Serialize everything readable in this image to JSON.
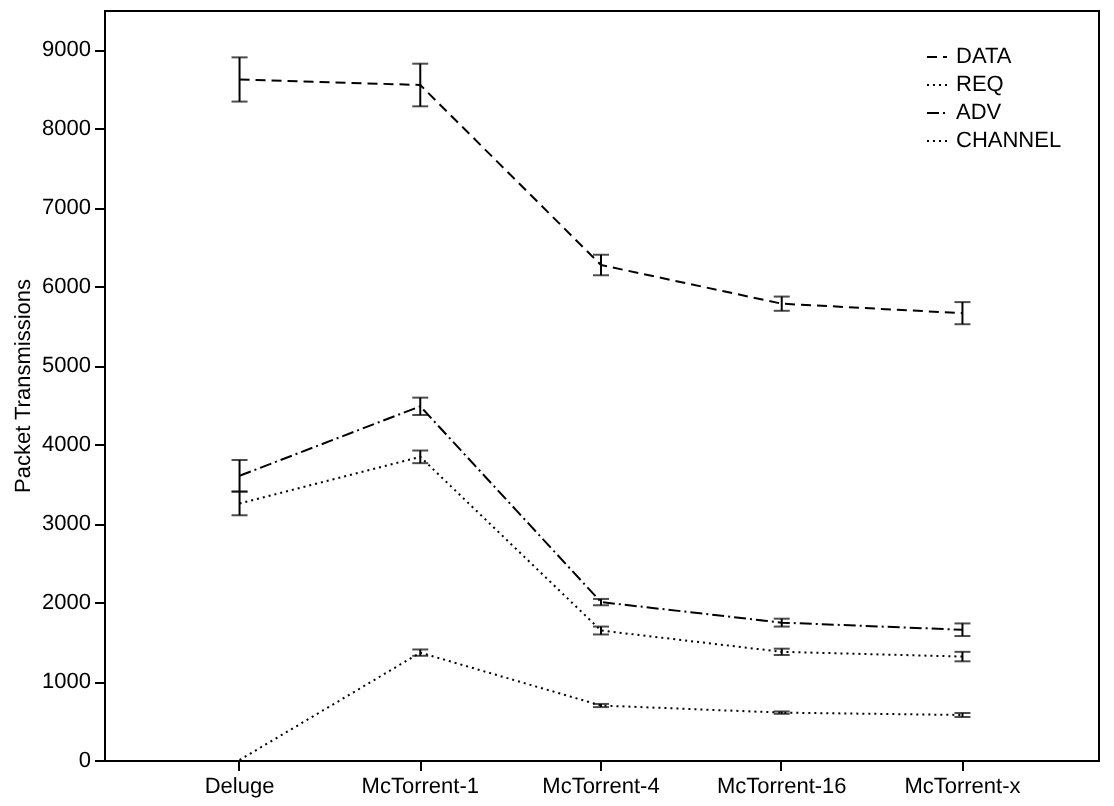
{
  "chart_data": {
    "type": "line",
    "ylabel": "Packet Transmissions",
    "categories": [
      "Deluge",
      "McTorrent-1",
      "McTorrent-4",
      "McTorrent-16",
      "McTorrent-x"
    ],
    "series": [
      {
        "name": "DATA",
        "color": "#000000",
        "line_style": "dashed",
        "values": [
          8620,
          8550,
          6270,
          5780,
          5660
        ],
        "errors": [
          280,
          270,
          130,
          90,
          140
        ]
      },
      {
        "name": "REQ",
        "color": "#000000",
        "line_style": "dotted",
        "values": [
          3250,
          3840,
          1640,
          1370,
          1310
        ],
        "errors": [
          150,
          80,
          50,
          40,
          60
        ]
      },
      {
        "name": "ADV",
        "color": "#000000",
        "line_style": "dashdot",
        "values": [
          3600,
          4480,
          2000,
          1740,
          1650
        ],
        "errors": [
          200,
          110,
          40,
          50,
          80
        ]
      },
      {
        "name": "CHANNEL",
        "color": "#000000",
        "line_style": "dotted",
        "values": [
          0,
          1360,
          690,
          600,
          570
        ],
        "errors": [
          null,
          40,
          20,
          15,
          25
        ]
      }
    ],
    "ylim": [
      0,
      9500
    ],
    "yticks": [
      0,
      1000,
      2000,
      3000,
      4000,
      5000,
      6000,
      7000,
      8000,
      9000
    ],
    "grid": false,
    "legend": "top right",
    "marker": "none"
  }
}
